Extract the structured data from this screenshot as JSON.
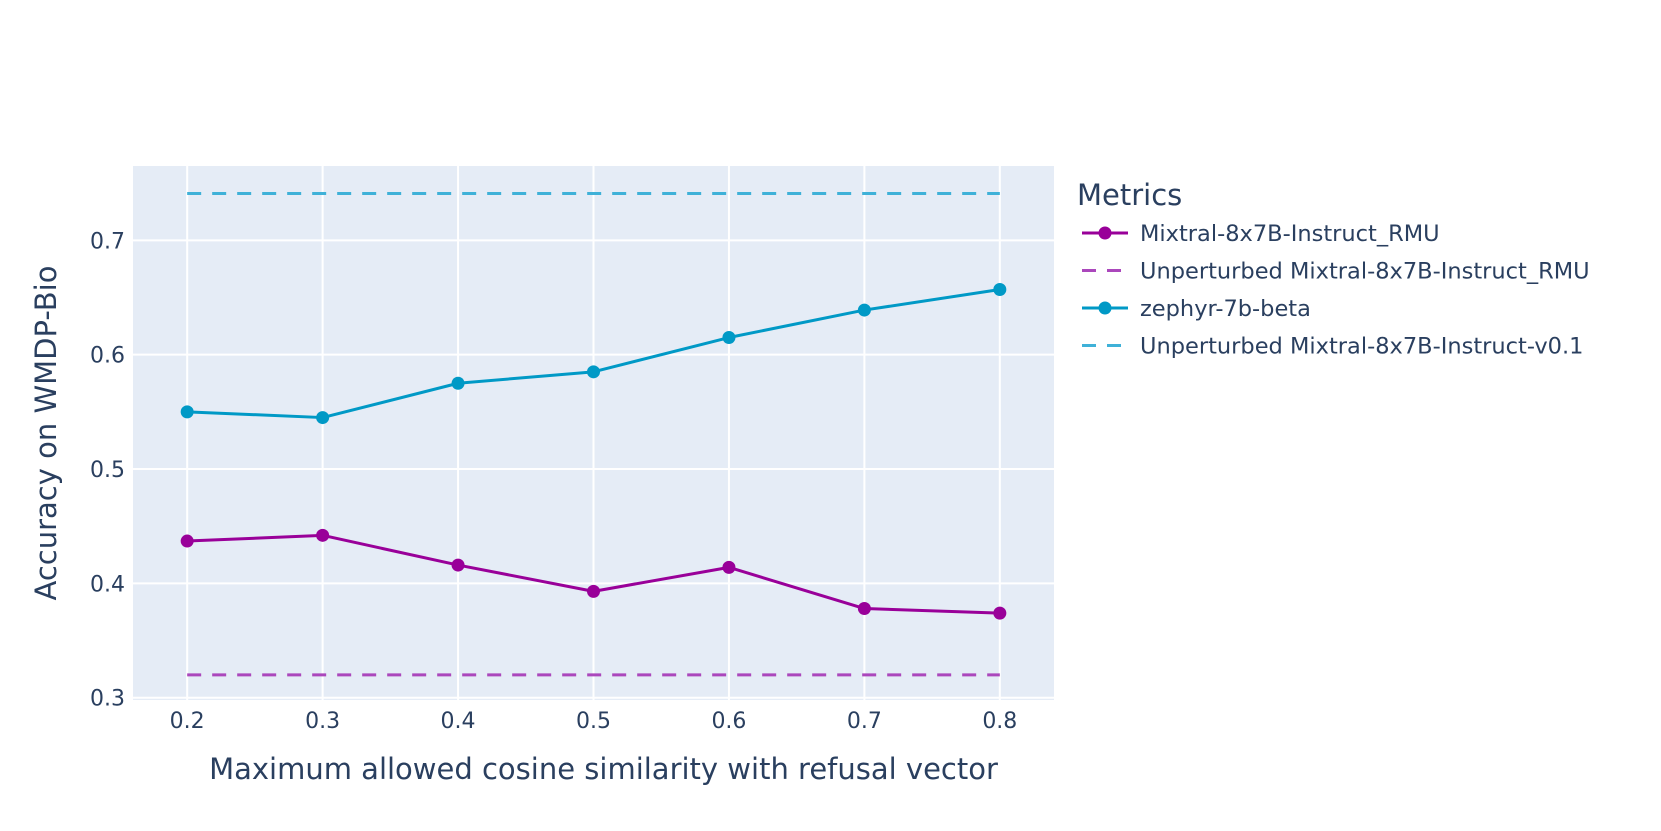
{
  "chart_data": {
    "type": "line",
    "xlabel": "Maximum allowed cosine similarity with refusal vector",
    "ylabel": "Accuracy on WMDP-Bio",
    "x": [
      0.2,
      0.3,
      0.4,
      0.5,
      0.6,
      0.7,
      0.8
    ],
    "x_ticks": [
      "0.2",
      "0.3",
      "0.4",
      "0.5",
      "0.6",
      "0.7",
      "0.8"
    ],
    "xlim": [
      0.16,
      0.84
    ],
    "ylim": [
      0.298,
      0.765
    ],
    "y_ticks": [
      0.3,
      0.4,
      0.5,
      0.6,
      0.7
    ],
    "y_tick_labels": [
      "0.3",
      "0.4",
      "0.5",
      "0.6",
      "0.7"
    ],
    "grid": true,
    "legend": {
      "title": "Metrics",
      "placement": "right"
    },
    "series": [
      {
        "name": "Mixtral-8x7B-Instruct_RMU",
        "values": [
          0.437,
          0.442,
          0.416,
          0.393,
          0.414,
          0.378,
          0.374
        ],
        "color": "#990099",
        "style": "lines+markers"
      },
      {
        "name": "Unperturbed Mixtral-8x7B-Instruct_RMU",
        "values": [
          0.32,
          0.32,
          0.32,
          0.32,
          0.32,
          0.32,
          0.32
        ],
        "color": "#AB47BC",
        "style": "dash"
      },
      {
        "name": "zephyr-7b-beta",
        "values": [
          0.55,
          0.545,
          0.575,
          0.585,
          0.615,
          0.639,
          0.657
        ],
        "color": "#0099C6",
        "style": "lines+markers"
      },
      {
        "name": "Unperturbed Mixtral-8x7B-Instruct-v0.1",
        "values": [
          0.741,
          0.741,
          0.741,
          0.741,
          0.741,
          0.741,
          0.741
        ],
        "color": "#3FB1D8",
        "style": "dash"
      }
    ]
  },
  "colors": {
    "plot_background": "#E5ECF6",
    "gridline": "#ffffff",
    "text": "#2a3f5f"
  }
}
